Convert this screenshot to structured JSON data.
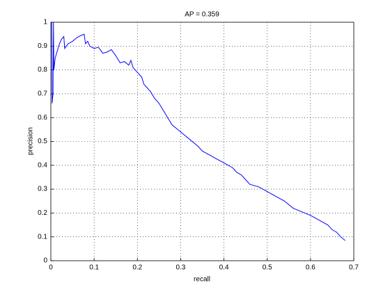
{
  "chart_data": {
    "type": "line",
    "title": "AP = 0.359",
    "x_label": "recall",
    "y_label": "precision",
    "color": "#0000ff",
    "grid": true,
    "xlim": [
      0,
      0.7
    ],
    "xticks": [
      0,
      0.1,
      0.2,
      0.3,
      0.4,
      0.5,
      0.6,
      0.7
    ],
    "ylim": [
      0,
      1
    ],
    "yticks": [
      0,
      0.1,
      0.2,
      0.3,
      0.4,
      0.5,
      0.6,
      0.7,
      0.8,
      0.9,
      1
    ],
    "x": [
      0.002,
      0.003,
      0.005,
      0.006,
      0.007,
      0.01,
      0.015,
      0.02,
      0.025,
      0.03,
      0.032,
      0.04,
      0.05,
      0.06,
      0.07,
      0.077,
      0.08,
      0.085,
      0.09,
      0.1,
      0.11,
      0.12,
      0.13,
      0.14,
      0.15,
      0.16,
      0.17,
      0.18,
      0.185,
      0.19,
      0.2,
      0.21,
      0.215,
      0.22,
      0.23,
      0.24,
      0.25,
      0.26,
      0.27,
      0.28,
      0.29,
      0.3,
      0.31,
      0.32,
      0.33,
      0.34,
      0.35,
      0.36,
      0.37,
      0.38,
      0.39,
      0.4,
      0.42,
      0.43,
      0.44,
      0.45,
      0.46,
      0.48,
      0.5,
      0.52,
      0.54,
      0.56,
      0.58,
      0.6,
      0.62,
      0.64,
      0.65,
      0.66,
      0.67,
      0.68
    ],
    "values": [
      1.0,
      0.66,
      0.7,
      1.0,
      0.8,
      0.85,
      0.88,
      0.91,
      0.93,
      0.94,
      0.89,
      0.91,
      0.92,
      0.935,
      0.945,
      0.95,
      0.91,
      0.92,
      0.9,
      0.89,
      0.895,
      0.87,
      0.875,
      0.885,
      0.86,
      0.83,
      0.835,
      0.82,
      0.84,
      0.81,
      0.79,
      0.77,
      0.74,
      0.73,
      0.71,
      0.68,
      0.66,
      0.63,
      0.6,
      0.57,
      0.555,
      0.54,
      0.525,
      0.51,
      0.495,
      0.48,
      0.46,
      0.45,
      0.44,
      0.43,
      0.42,
      0.41,
      0.39,
      0.37,
      0.36,
      0.34,
      0.32,
      0.31,
      0.29,
      0.27,
      0.25,
      0.22,
      0.205,
      0.19,
      0.17,
      0.15,
      0.13,
      0.12,
      0.1,
      0.085
    ]
  }
}
